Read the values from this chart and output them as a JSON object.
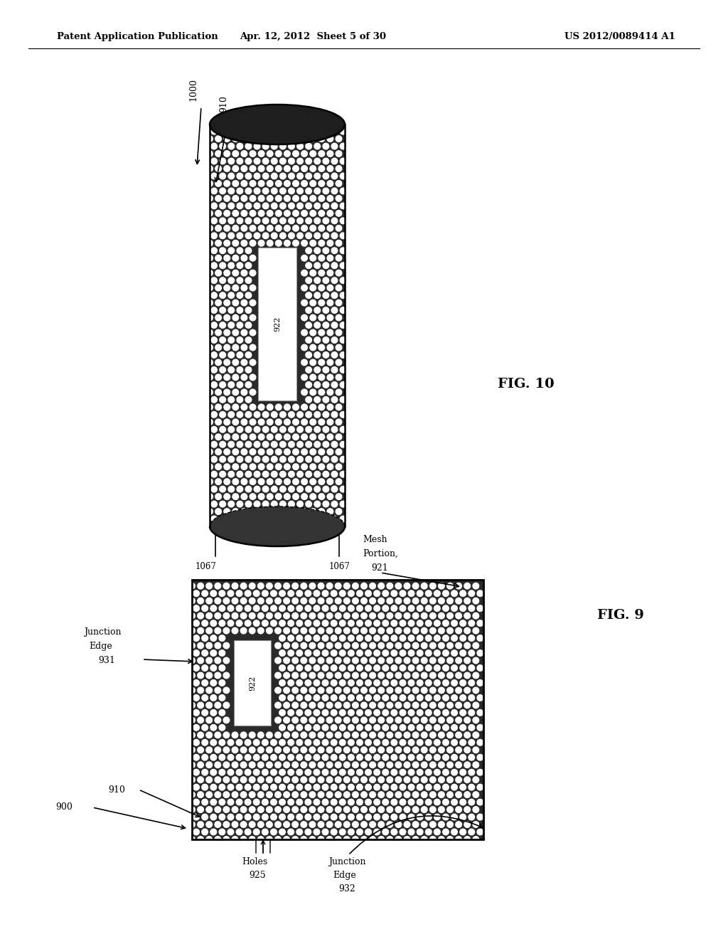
{
  "header_left": "Patent Application Publication",
  "header_mid": "Apr. 12, 2012  Sheet 5 of 30",
  "header_right": "US 2012/0089414 A1",
  "fig10_label": "FIG. 10",
  "fig9_label": "FIG. 9",
  "bg_color": "#ffffff"
}
